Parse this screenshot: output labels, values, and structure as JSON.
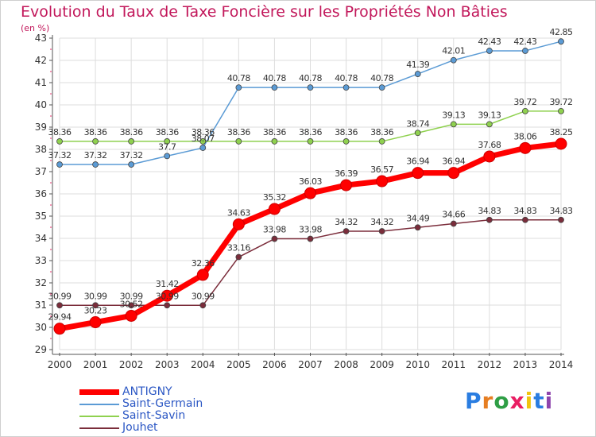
{
  "title": "Evolution du Taux de Taxe Foncière sur les Propriétés Non Bâties",
  "unit": "(en %)",
  "logo": {
    "text": "Proxiti",
    "colors": [
      "#2a7de1",
      "#e67e22",
      "#2e9e45",
      "#e91e63",
      "#f1c40f",
      "#2a7de1",
      "#8e44ad"
    ]
  },
  "chart_data": {
    "type": "line",
    "title": "Evolution du Taux de Taxe Foncière sur les Propriétés Non Bâties",
    "ylabel": "(en %)",
    "x": [
      2000,
      2001,
      2002,
      2003,
      2004,
      2005,
      2006,
      2007,
      2008,
      2009,
      2010,
      2011,
      2012,
      2013,
      2014
    ],
    "ylim": [
      29,
      43
    ],
    "yticks": [
      29,
      30,
      31,
      32,
      33,
      34,
      35,
      36,
      37,
      38,
      39,
      40,
      41,
      42,
      43
    ],
    "grid": true,
    "legend_position": "bottom-left",
    "series": [
      {
        "name": "ANTIGNY",
        "color": "#ff0000",
        "width": 7,
        "marker": 7,
        "labelDy": -11,
        "values": [
          29.94,
          30.23,
          30.52,
          31.42,
          32.36,
          34.63,
          35.32,
          36.03,
          36.39,
          36.57,
          36.94,
          36.94,
          37.68,
          38.06,
          38.25
        ],
        "labels": [
          "29.94",
          "30.23",
          "30.52",
          "31.42",
          "32.36",
          "34.63",
          "35.32",
          "36.03",
          "36.39",
          "36.57",
          "36.94",
          "36.94",
          "37.68",
          "38.06",
          "38.25"
        ]
      },
      {
        "name": "Saint-Germain",
        "color": "#5b9bd5",
        "width": 1.5,
        "marker": 3.5,
        "labelDy": -8,
        "values": [
          37.32,
          37.32,
          37.32,
          37.7,
          38.07,
          40.78,
          40.78,
          40.78,
          40.78,
          40.78,
          41.39,
          42.01,
          42.43,
          42.43,
          42.85
        ],
        "labels": [
          "37.32",
          "37.32",
          "37.32",
          "37.7",
          "38.07",
          "40.78",
          "40.78",
          "40.78",
          "40.78",
          "40.78",
          "41.39",
          "42.01",
          "42.43",
          "42.43",
          "42.85"
        ]
      },
      {
        "name": "Saint-Savin",
        "color": "#8fd14f",
        "width": 1.5,
        "marker": 3.5,
        "labelDy": -8,
        "values": [
          38.36,
          38.36,
          38.36,
          38.36,
          38.36,
          38.36,
          38.36,
          38.36,
          38.36,
          38.36,
          38.74,
          39.13,
          39.13,
          39.72,
          39.72
        ],
        "labels": [
          "38.36",
          "38.36",
          "38.36",
          "38.36",
          "38.36",
          "38.36",
          "38.36",
          "38.36",
          "38.36",
          "38.36",
          "38.74",
          "39.13",
          "39.13",
          "39.72",
          "39.72"
        ]
      },
      {
        "name": "Jouhet",
        "color": "#7b2d3b",
        "width": 1.5,
        "marker": 3.5,
        "labelDy": -8,
        "values": [
          30.99,
          30.99,
          30.99,
          30.99,
          30.99,
          33.16,
          33.98,
          33.98,
          34.32,
          34.32,
          34.49,
          34.66,
          34.83,
          34.83,
          34.83
        ],
        "labels": [
          "30.99",
          "30.99",
          "30.99",
          "30.99",
          "30.99",
          "33.16",
          "33.98",
          "33.98",
          "34.32",
          "34.32",
          "34.49",
          "34.66",
          "34.83",
          "34.83",
          "34.83"
        ]
      }
    ]
  }
}
